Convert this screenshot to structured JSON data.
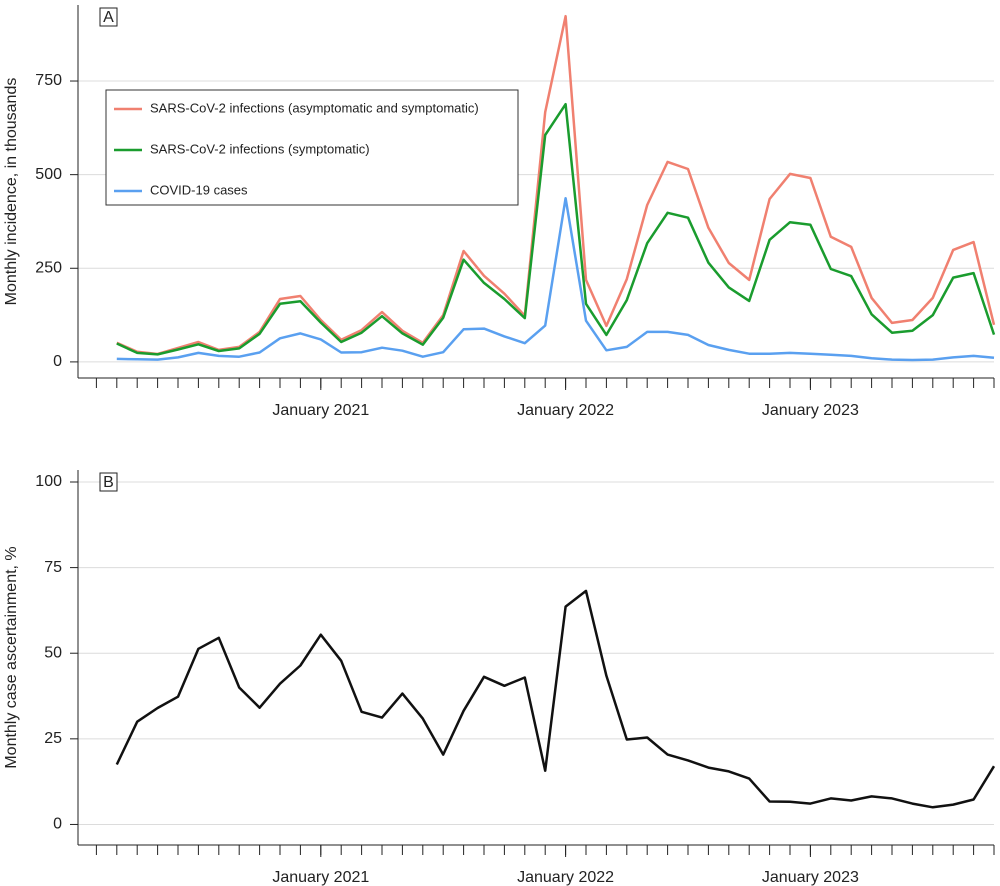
{
  "chart_data": [
    {
      "type": "line",
      "panel": "A",
      "ylabel": "Monthly incidence, in thousands",
      "x": [
        "2020-03",
        "2020-04",
        "2020-05",
        "2020-06",
        "2020-07",
        "2020-08",
        "2020-09",
        "2020-10",
        "2020-11",
        "2020-12",
        "2021-01",
        "2021-02",
        "2021-03",
        "2021-04",
        "2021-05",
        "2021-06",
        "2021-07",
        "2021-08",
        "2021-09",
        "2021-10",
        "2021-11",
        "2021-12",
        "2022-01",
        "2022-02",
        "2022-03",
        "2022-04",
        "2022-05",
        "2022-06",
        "2022-07",
        "2022-08",
        "2022-09",
        "2022-10",
        "2022-11",
        "2022-12",
        "2023-01",
        "2023-02",
        "2023-03",
        "2023-04",
        "2023-05",
        "2023-06",
        "2023-07",
        "2023-08",
        "2023-09",
        "2023-10"
      ],
      "xlim": [
        "2020-01",
        "2023-10"
      ],
      "xticks": [
        {
          "value": "2021-01",
          "label": "January 2021"
        },
        {
          "value": "2022-01",
          "label": "January 2022"
        },
        {
          "value": "2023-01",
          "label": "January 2023"
        }
      ],
      "xminorticks": [
        "2020-02",
        "2020-03",
        "2020-04",
        "2020-05",
        "2020-06",
        "2020-07",
        "2020-08",
        "2020-09",
        "2020-10",
        "2020-11",
        "2020-12",
        "2021-01",
        "2021-02",
        "2021-03",
        "2021-04",
        "2021-05",
        "2021-06",
        "2021-07",
        "2021-08",
        "2021-09",
        "2021-10",
        "2021-11",
        "2021-12",
        "2022-01",
        "2022-02",
        "2022-03",
        "2022-04",
        "2022-05",
        "2022-06",
        "2022-07",
        "2022-08",
        "2022-09",
        "2022-10",
        "2022-11",
        "2022-12",
        "2023-01",
        "2023-02",
        "2023-03",
        "2023-04",
        "2023-05",
        "2023-06",
        "2023-07",
        "2023-08",
        "2023-09",
        "2023-10"
      ],
      "ylim": [
        -43,
        953
      ],
      "yticks": [
        0,
        250,
        500,
        750
      ],
      "grid": true,
      "legend": "upper left",
      "series": [
        {
          "name": "SARS-CoV-2 infections (asymptomatic and symptomatic)",
          "color": "#f08070",
          "values": [
            51,
            27,
            21,
            37,
            53,
            32,
            40,
            80,
            168,
            176,
            112,
            59,
            85,
            133,
            83,
            51,
            125,
            296,
            230,
            182,
            123,
            667,
            923,
            219,
            96,
            221,
            419,
            534,
            515,
            358,
            264,
            219,
            435,
            502,
            491,
            334,
            307,
            171,
            104,
            112,
            171,
            299,
            320,
            99
          ]
        },
        {
          "name": "SARS-CoV-2 infections (symptomatic)",
          "color": "#1a9c2e",
          "values": [
            49,
            24,
            20,
            33,
            47,
            29,
            36,
            75,
            155,
            162,
            105,
            53,
            78,
            122,
            76,
            46,
            118,
            273,
            211,
            168,
            117,
            606,
            688,
            155,
            72,
            165,
            317,
            398,
            385,
            265,
            199,
            163,
            326,
            373,
            366,
            248,
            229,
            127,
            78,
            83,
            125,
            225,
            237,
            73
          ]
        },
        {
          "name": "COVID-19 cases",
          "color": "#5aa0f0",
          "values": [
            8,
            7,
            6,
            12,
            24,
            16,
            14,
            25,
            63,
            76,
            60,
            25,
            26,
            38,
            30,
            14,
            26,
            87,
            89,
            68,
            50,
            97,
            437,
            110,
            31,
            40,
            80,
            80,
            72,
            45,
            32,
            22,
            22,
            24,
            22,
            19,
            16,
            10,
            6,
            5,
            6,
            12,
            16,
            11
          ]
        }
      ]
    },
    {
      "type": "line",
      "panel": "B",
      "ylabel": "Monthly case ascertainment, %",
      "x": [
        "2020-03",
        "2020-04",
        "2020-05",
        "2020-06",
        "2020-07",
        "2020-08",
        "2020-09",
        "2020-10",
        "2020-11",
        "2020-12",
        "2021-01",
        "2021-02",
        "2021-03",
        "2021-04",
        "2021-05",
        "2021-06",
        "2021-07",
        "2021-08",
        "2021-09",
        "2021-10",
        "2021-11",
        "2021-12",
        "2022-01",
        "2022-02",
        "2022-03",
        "2022-04",
        "2022-05",
        "2022-06",
        "2022-07",
        "2022-08",
        "2022-09",
        "2022-10",
        "2022-11",
        "2022-12",
        "2023-01",
        "2023-02",
        "2023-03",
        "2023-04",
        "2023-05",
        "2023-06",
        "2023-07",
        "2023-08",
        "2023-09",
        "2023-10"
      ],
      "xlim": [
        "2020-01",
        "2023-10"
      ],
      "xticks": [
        {
          "value": "2021-01",
          "label": "January 2021"
        },
        {
          "value": "2022-01",
          "label": "January 2022"
        },
        {
          "value": "2023-01",
          "label": "January 2023"
        }
      ],
      "xminorticks": [
        "2020-02",
        "2020-03",
        "2020-04",
        "2020-05",
        "2020-06",
        "2020-07",
        "2020-08",
        "2020-09",
        "2020-10",
        "2020-11",
        "2020-12",
        "2021-01",
        "2021-02",
        "2021-03",
        "2021-04",
        "2021-05",
        "2021-06",
        "2021-07",
        "2021-08",
        "2021-09",
        "2021-10",
        "2021-11",
        "2021-12",
        "2022-01",
        "2022-02",
        "2022-03",
        "2022-04",
        "2022-05",
        "2022-06",
        "2022-07",
        "2022-08",
        "2022-09",
        "2022-10",
        "2022-11",
        "2022-12",
        "2023-01",
        "2023-02",
        "2023-03",
        "2023-04",
        "2023-05",
        "2023-06",
        "2023-07",
        "2023-08",
        "2023-09",
        "2023-10"
      ],
      "ylim": [
        -6,
        103.5
      ],
      "yticks": [
        0,
        25,
        50,
        75,
        100
      ],
      "grid": true,
      "series": [
        {
          "color": "#111111",
          "values": [
            17.5,
            30,
            34,
            37.3,
            51.3,
            54.5,
            40,
            34.1,
            41.1,
            46.4,
            55.4,
            47.8,
            32.9,
            31.2,
            38.2,
            30.9,
            20.4,
            33.2,
            43.1,
            40.5,
            42.9,
            15.7,
            63.6,
            68.2,
            43.4,
            24.8,
            25.4,
            20.4,
            18.7,
            16.6,
            15.5,
            13.4,
            6.7,
            6.6,
            6.1,
            7.6,
            7.0,
            8.2,
            7.6,
            6.1,
            5.0,
            5.8,
            7.3,
            17.0
          ]
        }
      ]
    }
  ]
}
